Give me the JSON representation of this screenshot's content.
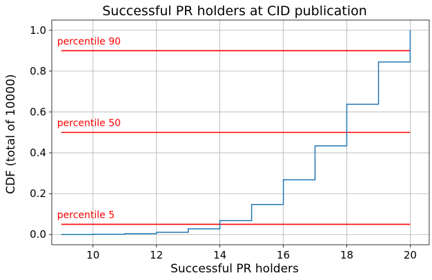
{
  "chart_data": {
    "type": "line",
    "subtype": "step-cdf",
    "title": "Successful PR holders at CID publication",
    "xlabel": "Successful PR holders",
    "ylabel": "CDF (total of 10000)",
    "xlim": [
      8.7,
      20.6
    ],
    "ylim": [
      -0.05,
      1.05
    ],
    "xticks": [
      10,
      12,
      14,
      16,
      18,
      20
    ],
    "yticks": [
      0.0,
      0.2,
      0.4,
      0.6,
      0.8,
      1.0
    ],
    "xtick_labels": [
      "10",
      "12",
      "14",
      "16",
      "18",
      "20"
    ],
    "ytick_labels": [
      "0.0",
      "0.2",
      "0.4",
      "0.6",
      "0.8",
      "1.0"
    ],
    "grid": true,
    "series": [
      {
        "color": "#1f77b4",
        "x": [
          9,
          10,
          11,
          12,
          13,
          14,
          15,
          16,
          17,
          18,
          19,
          20,
          20
        ],
        "y": [
          0.0,
          0.001,
          0.004,
          0.011,
          0.028,
          0.068,
          0.147,
          0.268,
          0.434,
          0.638,
          0.845,
          0.845,
          1.0
        ]
      }
    ],
    "reference_lines": [
      {
        "label": "percentile 90",
        "y": 0.9,
        "x_start": 9,
        "x_end": 20,
        "color": "#ff0000"
      },
      {
        "label": "percentile 50",
        "y": 0.5,
        "x_start": 9,
        "x_end": 20,
        "color": "#ff0000"
      },
      {
        "label": "percentile 5",
        "y": 0.05,
        "x_start": 9,
        "x_end": 20,
        "color": "#ff0000"
      }
    ]
  }
}
